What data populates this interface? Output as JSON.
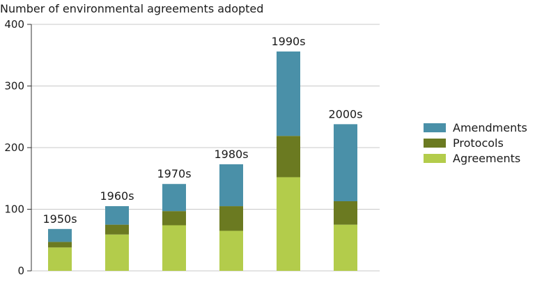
{
  "chart_data": {
    "type": "bar",
    "stacked": true,
    "title": "Number of environmental agreements adopted",
    "xlabel": "",
    "ylabel": "",
    "ylim": [
      0,
      400
    ],
    "yticks": [
      0,
      100,
      200,
      300,
      400
    ],
    "grid": true,
    "legend_position": "right",
    "categories": [
      "1950s",
      "1960s",
      "1970s",
      "1980s",
      "1990s",
      "2000s"
    ],
    "series": [
      {
        "name": "Agreements",
        "color": "#b3cc4b",
        "values": [
          38,
          59,
          74,
          65,
          152,
          75
        ]
      },
      {
        "name": "Protocols",
        "color": "#6b7a21",
        "values": [
          9,
          16,
          23,
          40,
          67,
          38
        ]
      },
      {
        "name": "Amendments",
        "color": "#4a90a8",
        "values": [
          21,
          30,
          44,
          68,
          137,
          125
        ]
      }
    ],
    "legend_order": [
      "Amendments",
      "Protocols",
      "Agreements"
    ]
  }
}
